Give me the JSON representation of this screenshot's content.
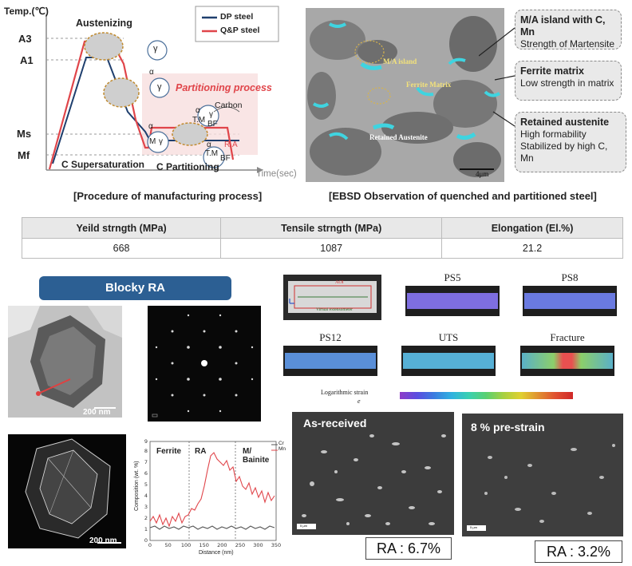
{
  "process_chart": {
    "y_axis_label": "Temp.(℃)",
    "x_axis_label": "Time(sec)",
    "y_levels": [
      "A3",
      "A1",
      "Ms",
      "Mf"
    ],
    "legend": [
      {
        "name": "DP steel",
        "color": "#1f3f6e"
      },
      {
        "name": "Q&P steel",
        "color": "#e0454a"
      }
    ],
    "annotations": {
      "austenizing": "Austenizing",
      "partitioning_process": "Partitioning process",
      "carbon": "Carbon",
      "c_supersaturation": "C Supersaturation",
      "c_partitioning": "C Partitioning",
      "gamma": "γ",
      "alpha": "α",
      "m": "M",
      "tm": "T.M",
      "bf": "BF",
      "ra": "R.A"
    },
    "caption": "[Procedure of manufacturing process]"
  },
  "ebsd": {
    "labels": {
      "ma_island": "M/A island",
      "ferrite_matrix": "Ferrite Matrix",
      "retained_austenite": "Retained Austenite",
      "scale_bar": "4μm"
    },
    "callouts": [
      {
        "title": "M/A island with C, Mn",
        "text": [
          "Strength of Martensite"
        ]
      },
      {
        "title": "Ferrite matrix",
        "text": [
          "Low strength in matrix"
        ]
      },
      {
        "title": "Retained austenite",
        "text": [
          "High formability",
          "Stabilized by high C, Mn"
        ]
      }
    ],
    "caption": "[EBSD Observation of quenched and partitioned steel]"
  },
  "properties_table": {
    "headers": [
      "Yeild strngth (MPa)",
      "Tensile strngth (MPa)",
      "Elongation (El.%)"
    ],
    "values": [
      "668",
      "1087",
      "21.2"
    ]
  },
  "blocky_ra": {
    "title": "Blocky RA",
    "scale_bar_1": "200 nm",
    "scale_bar_2": "200 nm"
  },
  "composition_chart": {
    "regions": [
      "Ferrite",
      "RA",
      "M/\nBainite"
    ],
    "legend": [
      "Cr",
      "Mn"
    ],
    "ylabel": "Composition (wt. %)",
    "xlabel": "Distance (nm)",
    "x_ticks": [
      "0",
      "50",
      "100",
      "150",
      "200",
      "250",
      "300",
      "350"
    ],
    "y_ticks": [
      "0",
      "1",
      "2",
      "3",
      "4",
      "5",
      "6",
      "7",
      "8",
      "9"
    ]
  },
  "dic": {
    "aoi_label": "AOI",
    "extensometer_label": "Virtual extensometer",
    "specimens": [
      "PS5",
      "PS8",
      "PS12",
      "UTS",
      "Fracture"
    ],
    "strain_label": "Logarithmic strain",
    "strain_symbol": "e"
  },
  "sem": {
    "left_label": "As-received",
    "right_label": "8 % pre-strain",
    "scale_text": "5 μm",
    "ra_left": "RA : 6.7%",
    "ra_right": "RA : 3.2%"
  }
}
